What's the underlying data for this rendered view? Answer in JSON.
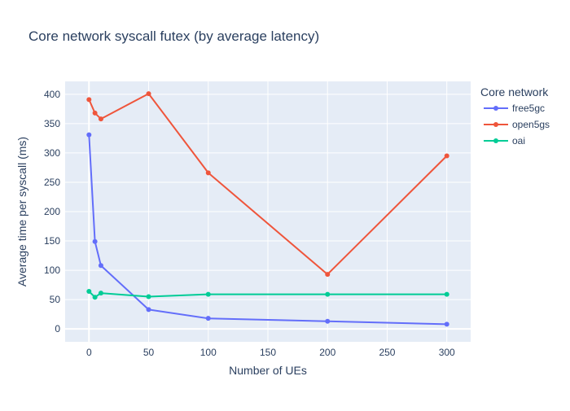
{
  "chart_data": {
    "type": "line",
    "title": "Core network syscall futex (by average latency)",
    "xlabel": "Number of UEs",
    "ylabel": "Average time per syscall (ms)",
    "xlim": [
      -20,
      320
    ],
    "ylim": [
      -22,
      422
    ],
    "xticks": [
      0,
      50,
      100,
      150,
      200,
      250,
      300
    ],
    "yticks": [
      0,
      50,
      100,
      150,
      200,
      250,
      300,
      350,
      400
    ],
    "grid": true,
    "legend": {
      "title": "Core network",
      "placement": "right"
    },
    "series": [
      {
        "name": "free5gc",
        "color": "#636efa",
        "x": [
          0,
          5,
          10,
          50,
          100,
          200,
          300
        ],
        "y": [
          331,
          149,
          108,
          33,
          18,
          13,
          8
        ]
      },
      {
        "name": "open5gs",
        "color": "#ef553b",
        "x": [
          0,
          5,
          10,
          50,
          100,
          200,
          300
        ],
        "y": [
          391,
          368,
          358,
          401,
          266,
          93,
          295
        ]
      },
      {
        "name": "oai",
        "color": "#00cc96",
        "x": [
          0,
          5,
          10,
          50,
          100,
          200,
          300
        ],
        "y": [
          64,
          54,
          61,
          55,
          59,
          59,
          59
        ]
      }
    ]
  }
}
